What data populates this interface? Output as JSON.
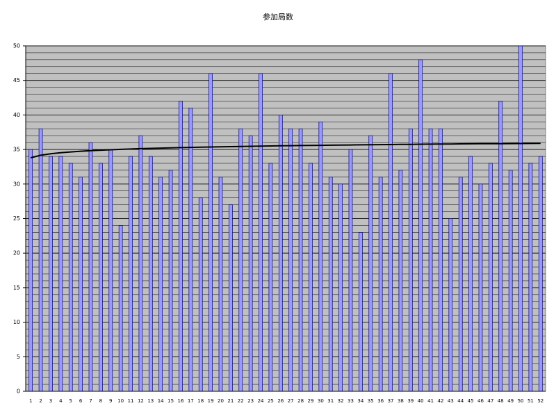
{
  "chart_data": {
    "type": "bar",
    "title": "参加局数",
    "categories": [
      1,
      2,
      3,
      4,
      5,
      6,
      7,
      8,
      9,
      10,
      11,
      12,
      13,
      14,
      15,
      16,
      17,
      18,
      19,
      20,
      21,
      22,
      23,
      24,
      25,
      26,
      27,
      28,
      29,
      30,
      31,
      32,
      33,
      34,
      35,
      36,
      37,
      38,
      39,
      40,
      41,
      42,
      43,
      44,
      45,
      46,
      47,
      48,
      49,
      50,
      51,
      52
    ],
    "values": [
      35,
      38,
      34,
      34,
      33,
      31,
      36,
      33,
      35,
      24,
      34,
      37,
      34,
      31,
      32,
      42,
      41,
      28,
      46,
      31,
      27,
      38,
      37,
      46,
      33,
      40,
      38,
      38,
      33,
      39,
      31,
      30,
      35,
      23,
      37,
      31,
      46,
      32,
      38,
      48,
      38,
      38,
      25,
      31,
      34,
      30,
      33,
      42,
      32,
      50,
      33,
      34
    ],
    "color": "#9999ff",
    "trendline": {
      "color": "#000000",
      "values": [
        33.8,
        34.17,
        34.38,
        34.53,
        34.65,
        34.75,
        34.83,
        34.9,
        34.96,
        35.02,
        35.07,
        35.12,
        35.16,
        35.2,
        35.24,
        35.27,
        35.3,
        35.33,
        35.36,
        35.39,
        35.41,
        35.44,
        35.46,
        35.48,
        35.51,
        35.53,
        35.55,
        35.57,
        35.58,
        35.6,
        35.62,
        35.64,
        35.65,
        35.67,
        35.68,
        35.7,
        35.71,
        35.73,
        35.74,
        35.76,
        35.77,
        35.78,
        35.79,
        35.81,
        35.82,
        35.83,
        35.84,
        35.85,
        35.86,
        35.87,
        35.88,
        35.89
      ]
    },
    "ylim": [
      0,
      50
    ],
    "yticks": [
      0,
      5,
      10,
      15,
      20,
      25,
      30,
      35,
      40,
      45,
      50
    ],
    "grid": true,
    "minor_grid_step": 1,
    "plot_background": "#c0c0c0"
  }
}
